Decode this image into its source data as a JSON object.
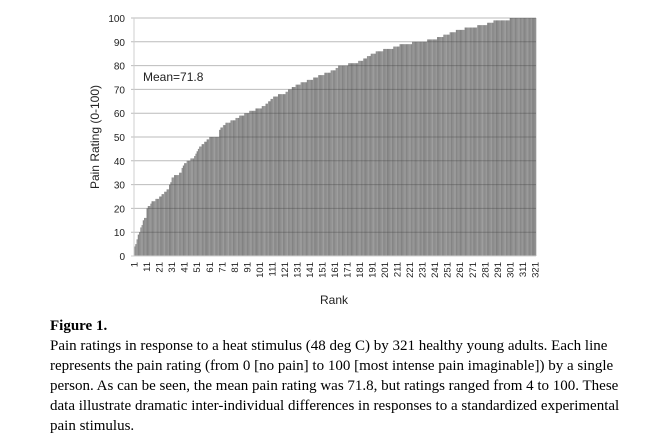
{
  "chart_data": {
    "type": "bar",
    "title": "",
    "xlabel": "Rank",
    "ylabel": "Pain Rating (0-100)",
    "ylim": [
      0,
      100
    ],
    "yticks": [
      0,
      10,
      20,
      30,
      40,
      50,
      60,
      70,
      80,
      90,
      100
    ],
    "xticks": [
      1,
      11,
      21,
      31,
      41,
      51,
      61,
      71,
      81,
      91,
      101,
      111,
      121,
      131,
      141,
      151,
      161,
      171,
      181,
      191,
      201,
      211,
      221,
      231,
      241,
      251,
      261,
      271,
      281,
      291,
      301,
      311,
      321
    ],
    "n_bars": 321,
    "grid": true,
    "annotation": "Mean=71.8",
    "anchor_points_rank_value": [
      [
        1,
        4
      ],
      [
        2,
        5
      ],
      [
        3,
        7
      ],
      [
        5,
        10
      ],
      [
        7,
        13
      ],
      [
        8,
        15
      ],
      [
        10,
        16
      ],
      [
        11,
        20
      ],
      [
        14,
        22
      ],
      [
        16,
        23
      ],
      [
        19,
        24
      ],
      [
        22,
        25
      ],
      [
        25,
        27
      ],
      [
        28,
        28
      ],
      [
        30,
        31
      ],
      [
        31,
        33
      ],
      [
        35,
        34
      ],
      [
        38,
        35
      ],
      [
        40,
        38
      ],
      [
        44,
        40
      ],
      [
        48,
        41
      ],
      [
        51,
        44
      ],
      [
        55,
        47
      ],
      [
        58,
        48
      ],
      [
        61,
        50
      ],
      [
        68,
        50
      ],
      [
        69,
        53
      ],
      [
        72,
        55
      ],
      [
        80,
        57
      ],
      [
        90,
        60
      ],
      [
        100,
        62
      ],
      [
        105,
        63
      ],
      [
        112,
        67
      ],
      [
        120,
        68
      ],
      [
        128,
        71
      ],
      [
        135,
        73
      ],
      [
        142,
        74
      ],
      [
        150,
        76
      ],
      [
        155,
        77
      ],
      [
        160,
        78
      ],
      [
        165,
        80
      ],
      [
        178,
        81
      ],
      [
        185,
        83
      ],
      [
        195,
        86
      ],
      [
        205,
        87
      ],
      [
        215,
        89
      ],
      [
        230,
        90
      ],
      [
        240,
        91
      ],
      [
        250,
        93
      ],
      [
        260,
        95
      ],
      [
        270,
        96
      ],
      [
        280,
        97
      ],
      [
        290,
        99
      ],
      [
        299,
        99
      ],
      [
        303,
        100
      ],
      [
        321,
        100
      ]
    ]
  },
  "caption": {
    "heading": "Figure 1.",
    "text": "Pain ratings in response to a heat stimulus (48 deg C) by 321 healthy young adults. Each line represents the pain rating (from 0 [no pain] to 100 [most intense pain imaginable]) by a single person. As can be seen, the mean pain rating was 71.8, but ratings ranged from 4 to 100. These data illustrate dramatic inter-individual differences in responses to a standardized experimental pain stimulus."
  }
}
